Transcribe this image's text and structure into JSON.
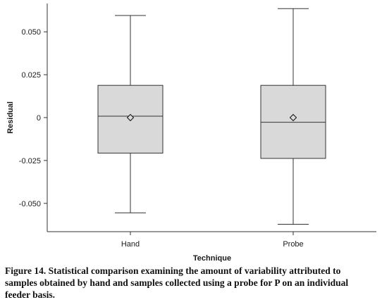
{
  "chart_data": {
    "type": "box",
    "xlabel": "Technique",
    "ylabel": "Residual",
    "ylim": [
      -0.0665,
      0.0665
    ],
    "yticks": [
      0.05,
      0.025,
      0,
      -0.025,
      -0.05
    ],
    "ytick_labels": [
      "0.050",
      "0.025",
      "0",
      "-0.025",
      "-0.050"
    ],
    "categories": [
      "Hand",
      "Probe"
    ],
    "boxes": [
      {
        "name": "Hand",
        "whisker_low": -0.0555,
        "q1": -0.0207,
        "median": 0.0008,
        "q3": 0.0188,
        "whisker_high": 0.0595,
        "mean": 0.0
      },
      {
        "name": "Probe",
        "whisker_low": -0.0622,
        "q1": -0.0238,
        "median": -0.0027,
        "q3": 0.0188,
        "whisker_high": 0.0635,
        "mean": 0.0
      }
    ],
    "box_fill": "#d9d9d9",
    "grid": false
  },
  "caption": "Figure 14. Statistical comparison examining the amount of variability attributed to samples obtained by hand and samples collected using a probe for P on an individual feeder basis."
}
